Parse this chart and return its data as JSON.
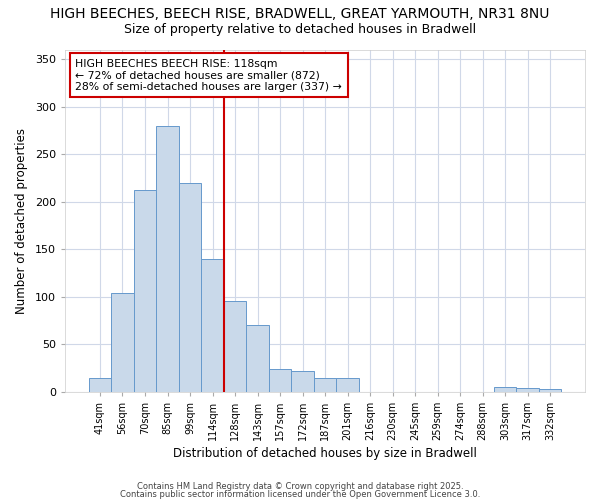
{
  "title_line1": "HIGH BEECHES, BEECH RISE, BRADWELL, GREAT YARMOUTH, NR31 8NU",
  "title_line2": "Size of property relative to detached houses in Bradwell",
  "xlabel": "Distribution of detached houses by size in Bradwell",
  "ylabel": "Number of detached properties",
  "bar_labels": [
    "41sqm",
    "56sqm",
    "70sqm",
    "85sqm",
    "99sqm",
    "114sqm",
    "128sqm",
    "143sqm",
    "157sqm",
    "172sqm",
    "187sqm",
    "201sqm",
    "216sqm",
    "230sqm",
    "245sqm",
    "259sqm",
    "274sqm",
    "288sqm",
    "303sqm",
    "317sqm",
    "332sqm"
  ],
  "bar_values": [
    14,
    104,
    213,
    280,
    220,
    140,
    96,
    70,
    24,
    22,
    14,
    14,
    0,
    0,
    0,
    0,
    0,
    0,
    5,
    4,
    3
  ],
  "bar_color": "#c9d9ea",
  "bar_edge_color": "#6699cc",
  "vline_x": 5.5,
  "vline_color": "#cc0000",
  "annotation_text": "HIGH BEECHES BEECH RISE: 118sqm\n← 72% of detached houses are smaller (872)\n28% of semi-detached houses are larger (337) →",
  "annotation_box_edge": "#cc0000",
  "ylim": [
    0,
    360
  ],
  "yticks": [
    0,
    50,
    100,
    150,
    200,
    250,
    300,
    350
  ],
  "background_color": "#ffffff",
  "plot_background_color": "#ffffff",
  "grid_color": "#d0d8e8",
  "footer_line1": "Contains HM Land Registry data © Crown copyright and database right 2025.",
  "footer_line2": "Contains public sector information licensed under the Open Government Licence 3.0."
}
